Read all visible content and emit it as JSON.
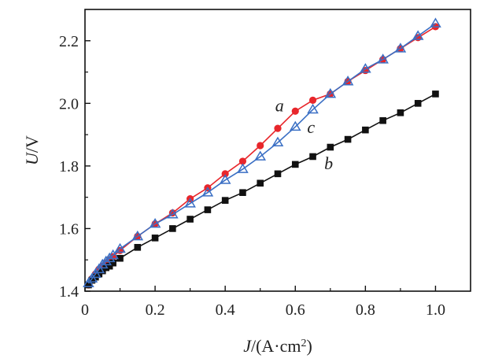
{
  "chart_data": {
    "type": "line",
    "title": "",
    "xlabel": {
      "italic": "J",
      "rest": "/(A·cm",
      "sup": "2",
      "close": ")"
    },
    "ylabel": {
      "italic": "U",
      "rest": "/V"
    },
    "xlim": [
      0,
      1.1
    ],
    "ylim": [
      1.4,
      2.3
    ],
    "xticks": [
      0,
      0.2,
      0.4,
      0.6,
      0.8,
      1.0
    ],
    "xtick_labels": [
      "0",
      "0.2",
      "0.4",
      "0.6",
      "0.8",
      "1.0"
    ],
    "yticks": [
      1.4,
      1.6,
      1.8,
      2.0,
      2.2
    ],
    "ytick_labels": [
      "1.4",
      "1.6",
      "1.8",
      "2.0",
      "2.2"
    ],
    "grid": false,
    "legend": "none",
    "series": [
      {
        "name": "a",
        "color": "#e8262b",
        "marker": "circle",
        "label_at": [
          0.555,
          1.975
        ],
        "x": [
          0.01,
          0.02,
          0.03,
          0.04,
          0.05,
          0.06,
          0.07,
          0.08,
          0.1,
          0.15,
          0.2,
          0.25,
          0.3,
          0.35,
          0.4,
          0.45,
          0.5,
          0.55,
          0.6,
          0.65,
          0.7,
          0.75,
          0.8,
          0.85,
          0.9,
          0.95,
          1.0
        ],
        "y": [
          1.42,
          1.44,
          1.455,
          1.47,
          1.48,
          1.49,
          1.5,
          1.51,
          1.53,
          1.575,
          1.615,
          1.65,
          1.695,
          1.73,
          1.775,
          1.815,
          1.865,
          1.92,
          1.975,
          2.01,
          2.03,
          2.07,
          2.105,
          2.14,
          2.175,
          2.21,
          2.245
        ]
      },
      {
        "name": "b",
        "color": "#111111",
        "marker": "square",
        "label_at": [
          0.695,
          1.79
        ],
        "x": [
          0.01,
          0.02,
          0.03,
          0.04,
          0.05,
          0.06,
          0.07,
          0.08,
          0.1,
          0.15,
          0.2,
          0.25,
          0.3,
          0.35,
          0.4,
          0.45,
          0.5,
          0.55,
          0.6,
          0.65,
          0.7,
          0.75,
          0.8,
          0.85,
          0.9,
          0.95,
          1.0
        ],
        "y": [
          1.42,
          1.435,
          1.445,
          1.455,
          1.465,
          1.475,
          1.48,
          1.49,
          1.505,
          1.54,
          1.57,
          1.6,
          1.63,
          1.66,
          1.69,
          1.715,
          1.745,
          1.775,
          1.805,
          1.83,
          1.86,
          1.885,
          1.915,
          1.945,
          1.97,
          2.0,
          2.03
        ]
      },
      {
        "name": "c",
        "color": "#3a6fc4",
        "marker": "triangle",
        "label_at": [
          0.645,
          1.905
        ],
        "x": [
          0.01,
          0.02,
          0.03,
          0.04,
          0.05,
          0.06,
          0.07,
          0.08,
          0.1,
          0.15,
          0.2,
          0.25,
          0.3,
          0.35,
          0.4,
          0.45,
          0.5,
          0.55,
          0.6,
          0.65,
          0.7,
          0.75,
          0.8,
          0.85,
          0.9,
          0.95,
          1.0
        ],
        "y": [
          1.425,
          1.44,
          1.455,
          1.47,
          1.485,
          1.495,
          1.505,
          1.515,
          1.535,
          1.575,
          1.615,
          1.645,
          1.68,
          1.715,
          1.755,
          1.79,
          1.83,
          1.875,
          1.925,
          1.98,
          2.03,
          2.07,
          2.11,
          2.14,
          2.175,
          2.215,
          2.255
        ]
      }
    ]
  }
}
